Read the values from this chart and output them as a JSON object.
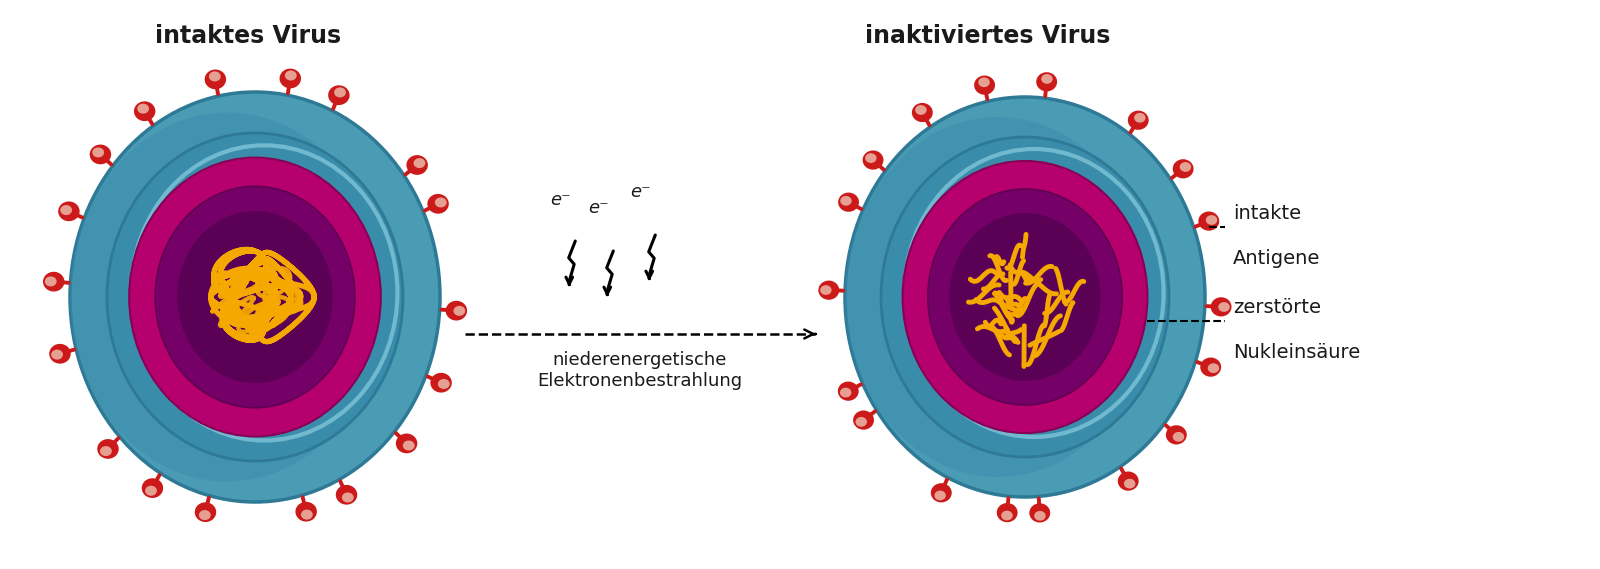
{
  "title_left": "intaktes Virus",
  "title_right": "inaktiviertes Virus",
  "label_antigene_line1": "intakte",
  "label_antigene_line2": "Antigene",
  "label_nukleinsaeure_line1": "zerstörte",
  "label_nukleinsaeure_line2": "Nukleinsäure",
  "label_electron": "niederenergetische\nElektronenbestrahlung",
  "bg_color": "#ffffff",
  "text_color": "#1a1a1a",
  "title_fontsize": 17,
  "label_fontsize": 14,
  "electron_fontsize": 13,
  "teal_main": "#4a9cb5",
  "teal_light": "#6bbdd4",
  "teal_dark": "#2e7a96",
  "teal_highlight": "#88cce0",
  "magenta_outer": "#b5006e",
  "magenta_mid": "#9a0065",
  "purple_inner": "#750068",
  "purple_dark": "#5a0055",
  "yellow_rna": "#f5a800",
  "red_antigen": "#cc1a1a",
  "pink_tip": "#e8b0a0"
}
